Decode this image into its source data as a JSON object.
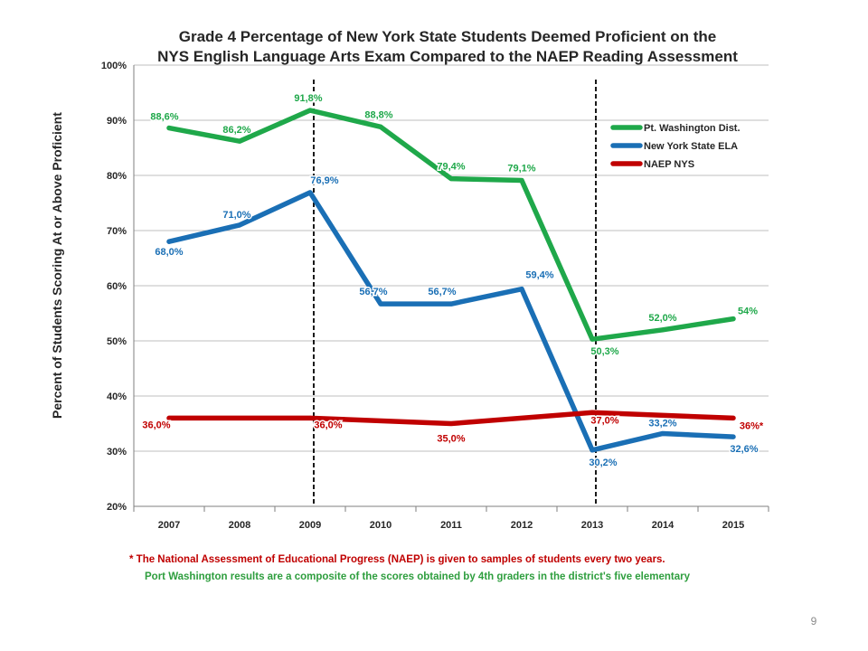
{
  "slide": {
    "page_number": "9",
    "footnote_1": "* The National Assessment of Educational Progress (NAEP) is given to samples of students every two years.",
    "footnote_2": "Port Washington results are a composite of the scores obtained by 4th graders in the district's five elementary"
  },
  "chart_data": {
    "type": "line",
    "title_line1": "Grade 4 Percentage of New York State Students Deemed Proficient on the",
    "title_line2": "NYS English Language Arts Exam Compared to the NAEP Reading Assessment",
    "xlabel": "",
    "ylabel": "Percent of Students Scoring At or Above Proficient",
    "categories": [
      "2007",
      "2008",
      "2009",
      "2010",
      "2011",
      "2012",
      "2013",
      "2014",
      "2015"
    ],
    "ylim": [
      20,
      100
    ],
    "yticks": [
      20,
      30,
      40,
      50,
      60,
      70,
      80,
      90,
      100
    ],
    "ytick_labels": [
      "20%",
      "30%",
      "40%",
      "50%",
      "60%",
      "70%",
      "80%",
      "90%",
      "100%"
    ],
    "grid": true,
    "legend_position": "top-right",
    "vertical_reference_lines": [
      "2009",
      "2013"
    ],
    "series": [
      {
        "name": "Pt. Washington Dist.",
        "color": "#1fa84a",
        "label_color": "#1fa84a",
        "values": [
          88.6,
          86.2,
          91.8,
          88.8,
          79.4,
          79.1,
          50.3,
          52.0,
          54.0
        ],
        "labels": [
          "88,6%",
          "86,2%",
          "91,8%",
          "88,8%",
          "79,4%",
          "79,1%",
          "50,3%",
          "52,0%",
          "54%"
        ]
      },
      {
        "name": "New York State ELA",
        "color": "#1a6fb5",
        "label_color": "#1a6fb5",
        "values": [
          68.0,
          71.0,
          76.9,
          56.7,
          56.7,
          59.4,
          30.2,
          33.2,
          32.6
        ],
        "labels": [
          "68,0%",
          "71,0%",
          "76,9%",
          "56,7%",
          "56,7%",
          "59,4%",
          "30,2%",
          "33,2%",
          "32,6%"
        ]
      },
      {
        "name": "NAEP NYS",
        "color": "#c00000",
        "label_color": "#c00000",
        "values": [
          36.0,
          null,
          36.0,
          null,
          35.0,
          null,
          37.0,
          null,
          36.0
        ],
        "labels": [
          "36,0%",
          null,
          "36,0%",
          null,
          "35,0%",
          null,
          "37,0%",
          null,
          "36%*"
        ]
      }
    ]
  }
}
